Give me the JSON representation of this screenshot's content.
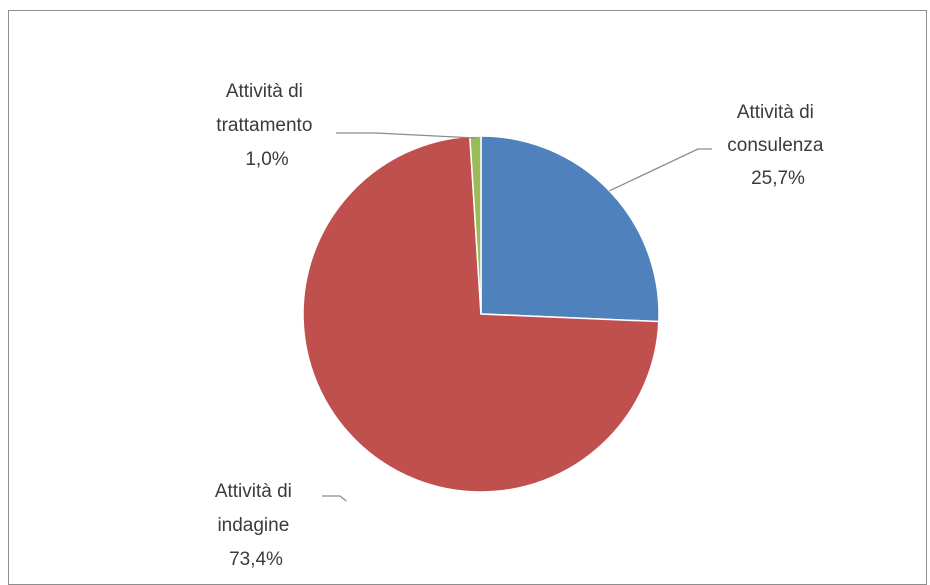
{
  "chart_data": {
    "type": "pie",
    "title": "",
    "slices": [
      {
        "name": "Attività di consulenza",
        "lines": [
          "Attività di",
          "consulenza"
        ],
        "value_label": "25,7%",
        "value": 25.7,
        "color": "#4f81bd"
      },
      {
        "name": "Attività di indagine",
        "lines": [
          "Attività di",
          "indagine"
        ],
        "value_label": "73,4%",
        "value": 73.4,
        "color": "#c0504d"
      },
      {
        "name": "Attività di trattamento",
        "lines": [
          "Attività di",
          "trattamento"
        ],
        "value_label": "1,0%",
        "value": 1.0,
        "color": "#9bbb59"
      }
    ],
    "legend": "none",
    "data_labels": "outside with leader lines"
  }
}
